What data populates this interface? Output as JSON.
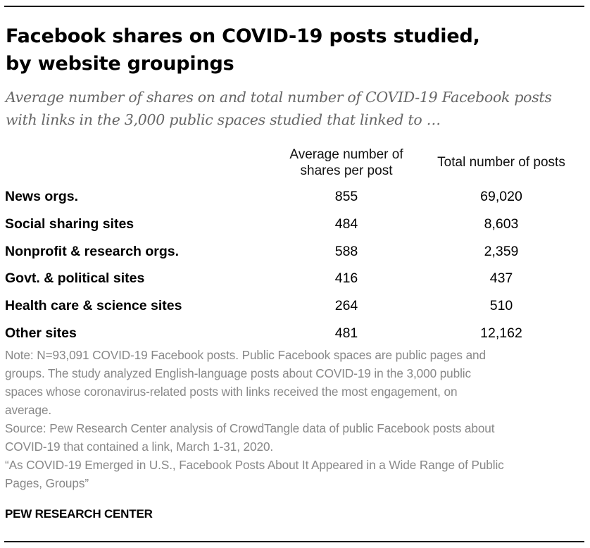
{
  "header": {
    "title_line1": "Facebook shares on COVID-19 posts studied,",
    "title_line2": "by website groupings",
    "subtitle_line1": "Average number of shares on and total number of COVID-19 Facebook posts",
    "subtitle_line2": "with links in the 3,000 public spaces studied that linked to …"
  },
  "chart_data": {
    "type": "table",
    "columns": [
      "",
      "Average number of shares per post",
      "Total number of posts"
    ],
    "column_heads": {
      "c1_line1": "Average number of",
      "c1_line2": "shares per post",
      "c2": "Total number of posts"
    },
    "rows": [
      {
        "category": "News orgs.",
        "avg_shares": "855",
        "total_posts": "69,020"
      },
      {
        "category": "Social sharing sites",
        "avg_shares": "484",
        "total_posts": "8,603"
      },
      {
        "category": "Nonprofit & research orgs.",
        "avg_shares": "588",
        "total_posts": "2,359"
      },
      {
        "category": "Govt. & political sites",
        "avg_shares": "416",
        "total_posts": "437"
      },
      {
        "category": "Health care & science sites",
        "avg_shares": "264",
        "total_posts": "510"
      },
      {
        "category": "Other sites",
        "avg_shares": "481",
        "total_posts": "12,162"
      }
    ]
  },
  "footer": {
    "note_lines": [
      "Note: N=93,091 COVID-19 Facebook posts. Public Facebook spaces are public pages and",
      "groups. The study analyzed English-language posts about COVID-19 in the 3,000 public",
      "spaces whose coronavirus-related posts with links received the most engagement, on",
      "average."
    ],
    "source_lines": [
      "Source: Pew Research Center analysis of CrowdTangle data of public Facebook posts about",
      "COVID-19 that contained a link, March 1-31, 2020."
    ],
    "report_lines": [
      "“As COVID-19 Emerged in U.S., Facebook Posts About It Appeared in a Wide Range of Public",
      "Pages, Groups”"
    ],
    "brand": "PEW RESEARCH CENTER"
  }
}
